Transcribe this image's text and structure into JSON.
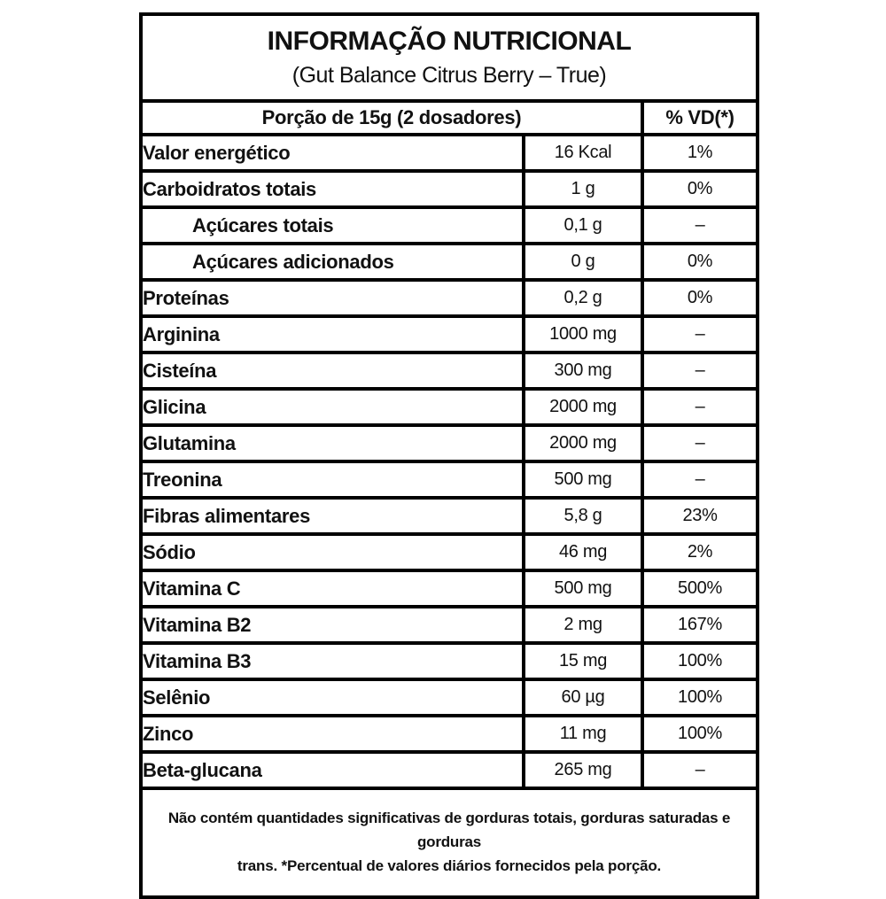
{
  "document": {
    "title": "INFORMAÇÃO NUTRICIONAL",
    "subtitle": "(Gut Balance Citrus Berry – True)",
    "columns": {
      "portion": "Porção de 15g (2 dosadores)",
      "vd": "% VD(*)"
    },
    "rows": [
      {
        "name": "Valor energético",
        "value": "16 Kcal",
        "vd": "1%"
      },
      {
        "name": "Carboidratos totais",
        "value": "1 g",
        "vd": "0%"
      },
      {
        "name": "Açúcares totais",
        "value": "0,1 g",
        "vd": "–"
      },
      {
        "name": "Açúcares adicionados",
        "value": "0 g",
        "vd": "0%"
      },
      {
        "name": "Proteínas",
        "value": "0,2 g",
        "vd": "0%"
      },
      {
        "name": "Arginina",
        "value": "1000 mg",
        "vd": "–"
      },
      {
        "name": "Cisteína",
        "value": "300 mg",
        "vd": "–"
      },
      {
        "name": "Glicina",
        "value": "2000 mg",
        "vd": "–"
      },
      {
        "name": "Glutamina",
        "value": "2000 mg",
        "vd": "–"
      },
      {
        "name": "Treonina",
        "value": "500 mg",
        "vd": "–"
      },
      {
        "name": "Fibras alimentares",
        "value": "5,8 g",
        "vd": "23%"
      },
      {
        "name": "Sódio",
        "value": "46 mg",
        "vd": "2%"
      },
      {
        "name": "Vitamina C",
        "value": "500 mg",
        "vd": "500%"
      },
      {
        "name": "Vitamina B2",
        "value": "2 mg",
        "vd": "167%"
      },
      {
        "name": "Vitamina B3",
        "value": "15 mg",
        "vd": "100%"
      },
      {
        "name": "Selênio",
        "value": "60 µg",
        "vd": "100%"
      },
      {
        "name": "Zinco",
        "value": "11 mg",
        "vd": "100%"
      },
      {
        "name": "Beta-glucana",
        "value": "265 mg",
        "vd": "–"
      }
    ],
    "footnote": {
      "line1": "Não contém quantidades significativas de gorduras totais, gorduras saturadas e gorduras",
      "line2": "trans. *Percentual de valores diários fornecidos pela porção."
    },
    "colors": {
      "border": "#000000",
      "background": "#ffffff",
      "text": "#111111"
    }
  }
}
